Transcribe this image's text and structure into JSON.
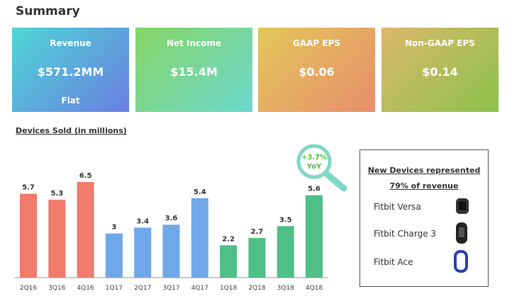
{
  "header": {
    "title": "Summary"
  },
  "cards": [
    {
      "label": "Revenue",
      "value": "$571.2MM",
      "note": "Flat"
    },
    {
      "label": "Net Income",
      "value": "$15.4M"
    },
    {
      "label": "GAAP EPS",
      "value": "$0.06"
    },
    {
      "label": "Non-GAAP EPS",
      "value": "$0.14"
    }
  ],
  "chart_data": {
    "type": "bar",
    "title": "Devices Sold (in millions)",
    "categories": [
      "2Q16",
      "3Q16",
      "4Q16",
      "1Q17",
      "2Q17",
      "3Q17",
      "4Q17",
      "1Q18",
      "2Q18",
      "3Q18",
      "4Q18"
    ],
    "values": [
      5.7,
      5.3,
      6.5,
      3,
      3.4,
      3.6,
      5.4,
      2.2,
      2.7,
      3.5,
      5.6
    ],
    "colors": [
      "#f07b6c",
      "#f07b6c",
      "#f07b6c",
      "#6fa8e8",
      "#6fa8e8",
      "#6fa8e8",
      "#6fa8e8",
      "#4fbf86",
      "#4fbf86",
      "#4fbf86",
      "#4fbf86"
    ],
    "ylim": [
      0,
      9
    ],
    "annotation": [
      "+3.7%",
      "YoY"
    ]
  },
  "legend_box": {
    "title": [
      "New Devices  represented",
      "79% of revenue"
    ],
    "items": [
      "Fitbit Versa",
      "Fitbit Charge 3",
      "Fitbit Ace"
    ]
  }
}
